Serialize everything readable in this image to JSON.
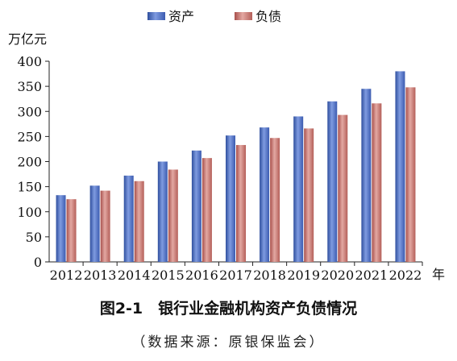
{
  "chart_data": {
    "type": "bar",
    "categories": [
      "2012",
      "2013",
      "2014",
      "2015",
      "2016",
      "2017",
      "2018",
      "2019",
      "2020",
      "2021",
      "2022"
    ],
    "series": [
      {
        "name": "资产",
        "values": [
          133,
          152,
          172,
          200,
          222,
          252,
          268,
          290,
          320,
          345,
          380
        ],
        "color": "#4f6fc2"
      },
      {
        "name": "负债",
        "values": [
          125,
          142,
          161,
          184,
          207,
          233,
          247,
          266,
          293,
          316,
          348
        ],
        "color": "#c2706a"
      }
    ],
    "y_unit": "万亿元",
    "x_unit": "年",
    "ylim": [
      0,
      400
    ],
    "yticks": [
      "0",
      "50",
      "100",
      "150",
      "200",
      "250",
      "300",
      "350",
      "400"
    ],
    "grid": false,
    "legend_position": "top"
  },
  "caption": {
    "title": "图2-1　银行业金融机构资产负债情况",
    "source": "（数据来源：原银保监会）"
  }
}
